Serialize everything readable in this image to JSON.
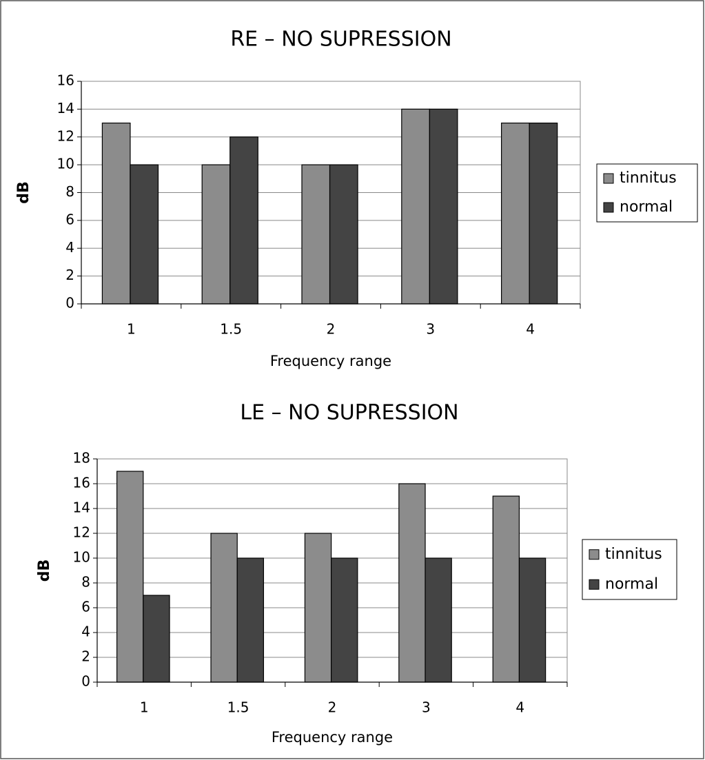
{
  "chart_data": [
    {
      "type": "bar",
      "title": "RE – NO SUPRESSION",
      "x_label": "Frequency range",
      "y_label": "dB",
      "categories": [
        "1",
        "1.5",
        "2",
        "3",
        "4"
      ],
      "series": [
        {
          "name": "tinnitus",
          "color": "#8c8c8c",
          "values": [
            13,
            10,
            10,
            14,
            13
          ]
        },
        {
          "name": "normal",
          "color": "#444444",
          "values": [
            10,
            12,
            10,
            14,
            13
          ]
        }
      ],
      "ylim": [
        0,
        16
      ],
      "yticks": [
        0,
        2,
        4,
        6,
        8,
        10,
        12,
        14,
        16
      ],
      "grid": true,
      "legend": "right"
    },
    {
      "type": "bar",
      "title": "LE – NO SUPRESSION",
      "x_label": "Frequency range",
      "y_label": "dB",
      "categories": [
        "1",
        "1.5",
        "2",
        "3",
        "4"
      ],
      "series": [
        {
          "name": "tinnitus",
          "color": "#8c8c8c",
          "values": [
            17,
            12,
            12,
            16,
            15
          ]
        },
        {
          "name": "normal",
          "color": "#444444",
          "values": [
            7,
            10,
            10,
            10,
            10
          ]
        }
      ],
      "ylim": [
        0,
        18
      ],
      "yticks": [
        0,
        2,
        4,
        6,
        8,
        10,
        12,
        14,
        16,
        18
      ],
      "grid": true,
      "legend": "right"
    }
  ]
}
